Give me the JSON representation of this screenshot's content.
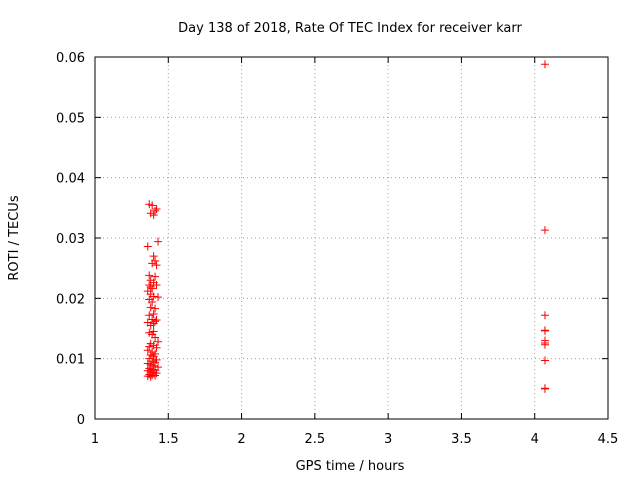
{
  "chart_data": {
    "type": "scatter",
    "title": "Day 138 of 2018, Rate Of TEC Index for receiver karr",
    "xlabel": "GPS time / hours",
    "ylabel": "ROTI / TECUs",
    "xlim": [
      1,
      4.5
    ],
    "ylim": [
      0,
      0.06
    ],
    "x_ticks": [
      1,
      1.5,
      2,
      2.5,
      3,
      3.5,
      4,
      4.5
    ],
    "x_tick_labels": [
      "1",
      "1.5",
      "2",
      "2.5",
      "3",
      "3.5",
      "4",
      "4.5"
    ],
    "y_ticks": [
      0,
      0.01,
      0.02,
      0.03,
      0.04,
      0.05,
      0.06
    ],
    "y_tick_labels": [
      "0",
      "0.01",
      "0.02",
      "0.03",
      "0.04",
      "0.05",
      "0.06"
    ],
    "grid": true,
    "marker": "+",
    "color": "#ff0000",
    "points": [
      [
        1.37,
        0.0356
      ],
      [
        1.39,
        0.0354
      ],
      [
        1.41,
        0.0345
      ],
      [
        1.38,
        0.0341
      ],
      [
        1.42,
        0.0348
      ],
      [
        1.4,
        0.0338
      ],
      [
        1.43,
        0.0294
      ],
      [
        1.36,
        0.0286
      ],
      [
        1.4,
        0.027
      ],
      [
        1.41,
        0.0262
      ],
      [
        1.42,
        0.0255
      ],
      [
        1.39,
        0.0258
      ],
      [
        1.37,
        0.0238
      ],
      [
        1.38,
        0.023
      ],
      [
        1.41,
        0.0236
      ],
      [
        1.4,
        0.0226
      ],
      [
        1.37,
        0.0222
      ],
      [
        1.38,
        0.0219
      ],
      [
        1.39,
        0.0216
      ],
      [
        1.42,
        0.0222
      ],
      [
        1.36,
        0.0212
      ],
      [
        1.38,
        0.0207
      ],
      [
        1.4,
        0.0203
      ],
      [
        1.37,
        0.0198
      ],
      [
        1.43,
        0.0202
      ],
      [
        1.39,
        0.0194
      ],
      [
        1.38,
        0.0185
      ],
      [
        1.41,
        0.0183
      ],
      [
        1.4,
        0.0174
      ],
      [
        1.37,
        0.0172
      ],
      [
        1.39,
        0.0165
      ],
      [
        1.42,
        0.0164
      ],
      [
        1.36,
        0.016
      ],
      [
        1.4,
        0.0158
      ],
      [
        1.38,
        0.0155
      ],
      [
        1.41,
        0.0162
      ],
      [
        1.37,
        0.0143
      ],
      [
        1.39,
        0.014
      ],
      [
        1.4,
        0.0145
      ],
      [
        1.41,
        0.0135
      ],
      [
        1.43,
        0.0128
      ],
      [
        1.38,
        0.0125
      ],
      [
        1.4,
        0.0122
      ],
      [
        1.37,
        0.012
      ],
      [
        1.42,
        0.0118
      ],
      [
        1.36,
        0.0114
      ],
      [
        1.39,
        0.0111
      ],
      [
        1.41,
        0.0108
      ],
      [
        1.38,
        0.0106
      ],
      [
        1.4,
        0.0104
      ],
      [
        1.37,
        0.01
      ],
      [
        1.42,
        0.0098
      ],
      [
        1.39,
        0.0096
      ],
      [
        1.41,
        0.0094
      ],
      [
        1.36,
        0.0092
      ],
      [
        1.38,
        0.009
      ],
      [
        1.4,
        0.0088
      ],
      [
        1.43,
        0.0086
      ],
      [
        1.37,
        0.0084
      ],
      [
        1.39,
        0.0082
      ],
      [
        1.41,
        0.0081
      ],
      [
        1.36,
        0.008
      ],
      [
        1.38,
        0.0078
      ],
      [
        1.4,
        0.0077
      ],
      [
        1.42,
        0.0076
      ],
      [
        1.37,
        0.0074
      ],
      [
        1.39,
        0.0073
      ],
      [
        1.41,
        0.0072
      ],
      [
        1.36,
        0.0071
      ],
      [
        1.38,
        0.007
      ],
      [
        4.07,
        0.0588
      ],
      [
        4.07,
        0.0313
      ],
      [
        4.07,
        0.0172
      ],
      [
        4.07,
        0.0147
      ],
      [
        4.07,
        0.0146
      ],
      [
        4.07,
        0.013
      ],
      [
        4.07,
        0.0126
      ],
      [
        4.07,
        0.0123
      ],
      [
        4.07,
        0.0097
      ],
      [
        4.07,
        0.0051
      ],
      [
        4.07,
        0.005
      ]
    ]
  }
}
